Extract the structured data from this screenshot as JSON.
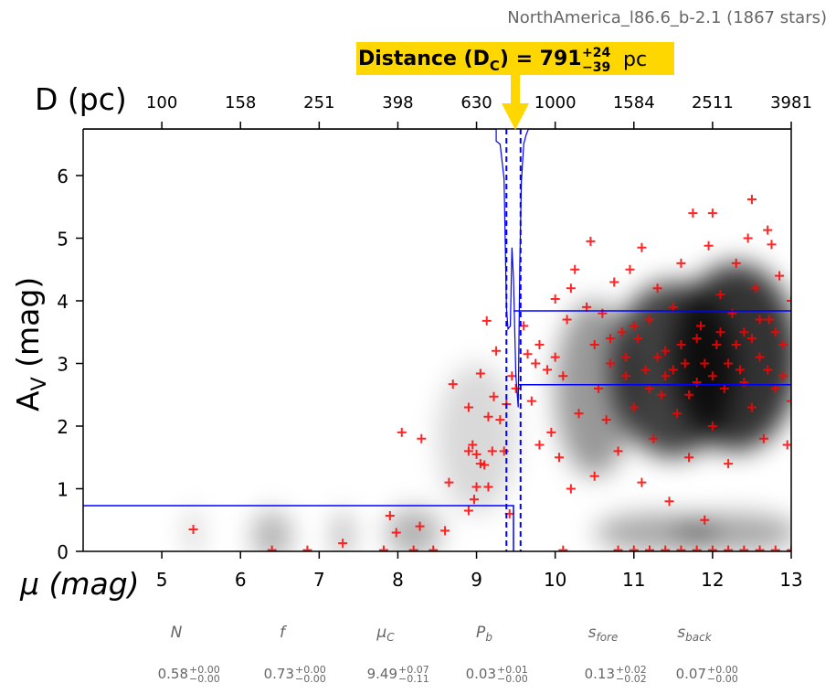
{
  "chart_data": {
    "type": "scatter",
    "title": "NorthAmerica_l86.6_b-2.1 (1867 stars)",
    "annotation": {
      "label": "Distance (D",
      "sub": "C",
      "eq": ") = 791",
      "plus": "+24",
      "minus": "−39",
      "unit": "pc"
    },
    "xlabel": "μ (mag)",
    "ylabel": "A",
    "ylabel_sub": "V",
    "ylabel_unit": " (mag)",
    "top_xlabel": "D (pc)",
    "xlim": [
      4,
      13
    ],
    "ylim": [
      0,
      6.74
    ],
    "xticks": [
      5,
      6,
      7,
      8,
      9,
      10,
      11,
      12,
      13
    ],
    "yticks": [
      0,
      1,
      2,
      3,
      4,
      5,
      6
    ],
    "top_ticks": [
      {
        "mu": 5,
        "label": "100"
      },
      {
        "mu": 6,
        "label": "158"
      },
      {
        "mu": 7,
        "label": "251"
      },
      {
        "mu": 8,
        "label": "398"
      },
      {
        "mu": 9,
        "label": "630"
      },
      {
        "mu": 10,
        "label": "1000"
      },
      {
        "mu": 11,
        "label": "1584"
      },
      {
        "mu": 12,
        "label": "2511"
      },
      {
        "mu": 13,
        "label": "3981"
      }
    ],
    "model": {
      "mu_c": 9.49,
      "foreground_av": 0.73,
      "background_av_upper": 3.84,
      "background_av_lower": 2.66,
      "mu_c_lo": 9.38,
      "mu_c_hi": 9.56
    },
    "mu_c_posterior": [
      [
        4,
        6.74
      ],
      [
        9.25,
        6.74
      ],
      [
        9.25,
        6.55
      ],
      [
        9.3,
        6.5
      ],
      [
        9.35,
        5.95
      ],
      [
        9.38,
        3.9
      ],
      [
        9.4,
        3.55
      ],
      [
        9.43,
        3.6
      ],
      [
        9.45,
        4.85
      ],
      [
        9.47,
        4.35
      ],
      [
        9.5,
        2.8
      ],
      [
        9.53,
        2.3
      ],
      [
        9.55,
        4.6
      ],
      [
        9.57,
        5.9
      ],
      [
        9.6,
        6.5
      ],
      [
        9.63,
        6.65
      ],
      [
        9.66,
        6.74
      ],
      [
        13,
        6.74
      ]
    ],
    "density_blobs": [
      [
        5.4,
        0.3,
        0.05,
        0.4,
        0.35
      ],
      [
        6.4,
        0.25,
        0.25,
        0.4,
        0.3
      ],
      [
        7.3,
        0.25,
        0.1,
        0.4,
        0.35
      ],
      [
        8.2,
        0.3,
        0.35,
        0.4,
        0.3
      ],
      [
        9.0,
        1.8,
        0.5,
        1.2,
        0.15
      ],
      [
        10.5,
        2.6,
        0.5,
        1.4,
        0.4
      ],
      [
        11.5,
        2.9,
        0.8,
        1.4,
        0.75
      ],
      [
        12.3,
        3.1,
        0.8,
        1.5,
        0.8
      ],
      [
        11.3,
        0.3,
        0.8,
        0.3,
        0.35
      ],
      [
        12.3,
        0.3,
        0.8,
        0.3,
        0.35
      ]
    ],
    "points": [
      [
        5.4,
        0.35
      ],
      [
        6.4,
        0.02
      ],
      [
        6.85,
        0.02
      ],
      [
        7.3,
        0.13
      ],
      [
        7.82,
        0.02
      ],
      [
        7.9,
        0.57
      ],
      [
        7.98,
        0.3
      ],
      [
        8.05,
        1.9
      ],
      [
        8.2,
        0.02
      ],
      [
        8.3,
        1.8
      ],
      [
        8.28,
        0.4
      ],
      [
        8.45,
        0.02
      ],
      [
        8.6,
        0.33
      ],
      [
        8.65,
        1.1
      ],
      [
        8.7,
        2.67
      ],
      [
        8.9,
        0.65
      ],
      [
        8.9,
        1.6
      ],
      [
        8.9,
        2.3
      ],
      [
        8.95,
        1.7
      ],
      [
        8.97,
        0.83
      ],
      [
        9.0,
        1.55
      ],
      [
        9.0,
        1.03
      ],
      [
        9.05,
        2.84
      ],
      [
        9.05,
        1.4
      ],
      [
        9.1,
        1.38
      ],
      [
        9.13,
        3.68
      ],
      [
        9.15,
        2.15
      ],
      [
        9.15,
        1.03
      ],
      [
        9.2,
        1.6
      ],
      [
        9.22,
        2.47
      ],
      [
        9.25,
        3.2
      ],
      [
        9.3,
        2.1
      ],
      [
        9.35,
        1.6
      ],
      [
        9.38,
        2.35
      ],
      [
        9.42,
        0.6
      ],
      [
        9.45,
        2.8
      ],
      [
        9.5,
        2.6
      ],
      [
        9.6,
        3.6
      ],
      [
        9.65,
        3.15
      ],
      [
        9.7,
        2.4
      ],
      [
        9.75,
        3.0
      ],
      [
        9.8,
        1.7
      ],
      [
        9.8,
        3.3
      ],
      [
        9.9,
        2.9
      ],
      [
        9.95,
        1.9
      ],
      [
        10.0,
        4.03
      ],
      [
        10.0,
        3.1
      ],
      [
        10.05,
        1.5
      ],
      [
        10.1,
        2.8
      ],
      [
        10.15,
        3.7
      ],
      [
        10.2,
        4.2
      ],
      [
        10.25,
        4.5
      ],
      [
        10.1,
        0.02
      ],
      [
        10.2,
        1.0
      ],
      [
        10.3,
        2.2
      ],
      [
        10.4,
        3.9
      ],
      [
        10.45,
        4.95
      ],
      [
        10.5,
        1.2
      ],
      [
        10.5,
        3.3
      ],
      [
        10.55,
        2.6
      ],
      [
        10.6,
        3.8
      ],
      [
        10.65,
        2.1
      ],
      [
        10.7,
        3.0
      ],
      [
        10.75,
        4.3
      ],
      [
        10.8,
        1.6
      ],
      [
        10.85,
        3.5
      ],
      [
        10.9,
        2.8
      ],
      [
        10.95,
        4.5
      ],
      [
        11.0,
        2.3
      ],
      [
        11.05,
        3.4
      ],
      [
        11.1,
        1.1
      ],
      [
        11.1,
        4.85
      ],
      [
        11.15,
        2.9
      ],
      [
        11.2,
        3.7
      ],
      [
        11.25,
        1.8
      ],
      [
        11.3,
        4.2
      ],
      [
        11.35,
        2.5
      ],
      [
        11.4,
        3.2
      ],
      [
        11.45,
        0.8
      ],
      [
        11.5,
        3.9
      ],
      [
        11.55,
        2.2
      ],
      [
        11.6,
        4.6
      ],
      [
        11.65,
        3.0
      ],
      [
        11.7,
        1.5
      ],
      [
        11.75,
        5.4
      ],
      [
        11.8,
        2.7
      ],
      [
        11.85,
        3.6
      ],
      [
        11.9,
        0.5
      ],
      [
        11.95,
        4.88
      ],
      [
        12.0,
        2.0
      ],
      [
        12.0,
        5.4
      ],
      [
        12.05,
        3.3
      ],
      [
        12.1,
        4.1
      ],
      [
        12.15,
        2.6
      ],
      [
        12.2,
        1.4
      ],
      [
        12.25,
        3.8
      ],
      [
        12.3,
        4.6
      ],
      [
        12.35,
        2.9
      ],
      [
        12.4,
        3.5
      ],
      [
        12.45,
        5.0
      ],
      [
        12.5,
        5.62
      ],
      [
        12.5,
        2.3
      ],
      [
        12.55,
        4.2
      ],
      [
        12.6,
        3.1
      ],
      [
        12.65,
        1.8
      ],
      [
        12.7,
        5.13
      ],
      [
        12.72,
        3.7
      ],
      [
        12.75,
        4.9
      ],
      [
        12.8,
        2.6
      ],
      [
        12.85,
        4.4
      ],
      [
        12.9,
        3.3
      ],
      [
        12.95,
        1.7
      ],
      [
        13.0,
        4.0
      ],
      [
        13.0,
        2.4
      ],
      [
        10.7,
        3.4
      ],
      [
        10.9,
        3.1
      ],
      [
        11.0,
        3.6
      ],
      [
        11.2,
        2.6
      ],
      [
        11.3,
        3.1
      ],
      [
        11.4,
        2.8
      ],
      [
        11.5,
        2.9
      ],
      [
        11.6,
        3.3
      ],
      [
        11.7,
        2.5
      ],
      [
        11.8,
        3.4
      ],
      [
        11.9,
        3.0
      ],
      [
        12.0,
        2.8
      ],
      [
        12.1,
        3.5
      ],
      [
        12.2,
        3.0
      ],
      [
        12.3,
        3.3
      ],
      [
        12.4,
        2.7
      ],
      [
        12.5,
        3.4
      ],
      [
        12.6,
        3.7
      ],
      [
        12.7,
        2.9
      ],
      [
        12.8,
        3.5
      ],
      [
        12.9,
        2.8
      ],
      [
        10.8,
        0.02
      ],
      [
        11.0,
        0.02
      ],
      [
        11.2,
        0.02
      ],
      [
        11.4,
        0.02
      ],
      [
        11.6,
        0.02
      ],
      [
        11.8,
        0.02
      ],
      [
        12.0,
        0.02
      ],
      [
        12.2,
        0.02
      ],
      [
        12.4,
        0.02
      ],
      [
        12.6,
        0.02
      ],
      [
        12.8,
        0.02
      ],
      [
        13.0,
        0.02
      ]
    ]
  },
  "params": [
    {
      "name": "N",
      "val": "0.58",
      "plus": "+0.00",
      "minus": "−0.00"
    },
    {
      "name": "f",
      "val": "0.73",
      "plus": "+0.00",
      "minus": "−0.00"
    },
    {
      "name": "μ",
      "sub": "C",
      "val": "9.49",
      "plus": "+0.07",
      "minus": "−0.11"
    },
    {
      "name": "P",
      "sub": "b",
      "val": "0.03",
      "plus": "+0.01",
      "minus": "−0.00"
    },
    {
      "name": "s",
      "sub": "fore",
      "val": "0.13",
      "plus": "+0.02",
      "minus": "−0.02"
    },
    {
      "name": "s",
      "sub": "back",
      "val": "0.07",
      "plus": "+0.00",
      "minus": "−0.00"
    }
  ],
  "colors": {
    "points": "#ff0000",
    "model": "#0000ff",
    "annotation": "#ffd700"
  }
}
